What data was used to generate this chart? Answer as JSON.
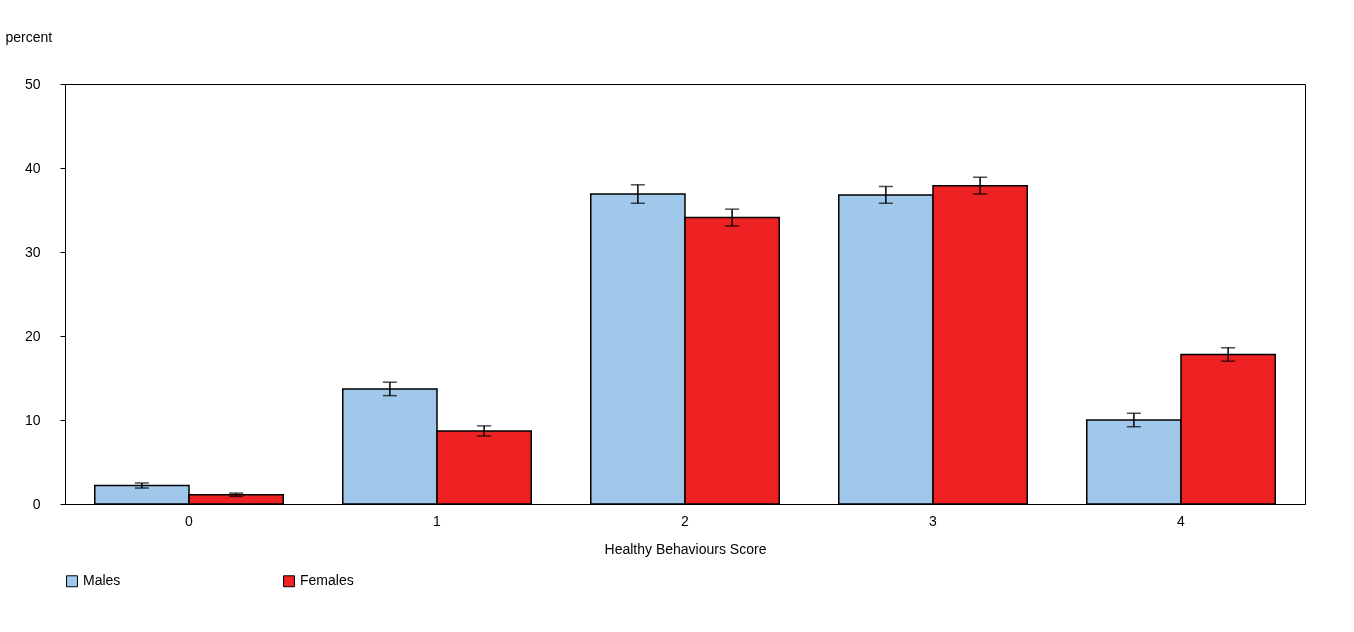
{
  "chart_data": {
    "type": "bar",
    "ylabel": "percent",
    "xlabel": "Healthy Behaviours Score",
    "categories": [
      "0",
      "1",
      "2",
      "3",
      "4"
    ],
    "series": [
      {
        "name": "Males",
        "color": "#a0c8ea",
        "values": [
          2.2,
          13.7,
          36.9,
          36.8,
          10.0
        ],
        "errors": [
          0.3,
          0.8,
          1.1,
          1.0,
          0.8
        ]
      },
      {
        "name": "Females",
        "color": "#ee2222",
        "values": [
          1.1,
          8.7,
          34.1,
          37.9,
          17.8
        ],
        "errors": [
          0.2,
          0.6,
          1.0,
          1.0,
          0.8
        ]
      }
    ],
    "ylim": [
      0,
      50
    ],
    "yticks": [
      0,
      10,
      20,
      30,
      40,
      50
    ],
    "grid": false,
    "legend": "bottom"
  }
}
